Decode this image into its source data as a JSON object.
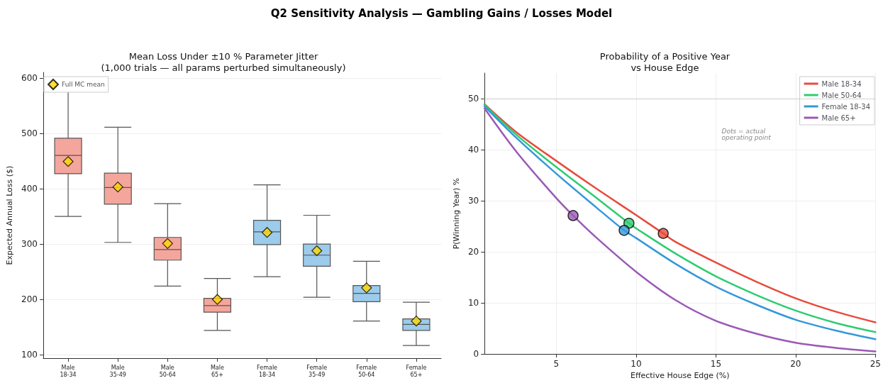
{
  "chart_data": [
    {
      "type": "box",
      "title": "Mean Loss Under ±10 % Parameter Jitter",
      "subtitle": "(1,000 trials — all params perturbed simultaneously)",
      "ylabel": "Expected Annual Loss ($)",
      "annotations": [
        "Q2 Sensitivity Analysis — Gambling Gains / Losses Model"
      ],
      "categories": [
        "Male\n18-34",
        "Male\n35-49",
        "Male\n50-64",
        "Male\n65+",
        "Female\n18-34",
        "Female\n35-49",
        "Female\n50-64",
        "Female\n65+"
      ],
      "colors": [
        "#f4a69c",
        "#f4a69c",
        "#f4a69c",
        "#f4a69c",
        "#9ccbeb",
        "#9ccbeb",
        "#9ccbeb",
        "#9ccbeb"
      ],
      "boxes": [
        {
          "low": 350,
          "q1": 427,
          "median": 460,
          "q3": 491,
          "high": 586
        },
        {
          "low": 303,
          "q1": 372,
          "median": 402,
          "q3": 428,
          "high": 511
        },
        {
          "low": 224,
          "q1": 271,
          "median": 290,
          "q3": 312,
          "high": 373
        },
        {
          "low": 144,
          "q1": 177,
          "median": 189,
          "q3": 202,
          "high": 238
        },
        {
          "low": 241,
          "q1": 299,
          "median": 322,
          "q3": 343,
          "high": 407
        },
        {
          "low": 204,
          "q1": 260,
          "median": 280,
          "q3": 300,
          "high": 352
        },
        {
          "low": 161,
          "q1": 196,
          "median": 211,
          "q3": 225,
          "high": 269
        },
        {
          "low": 117,
          "q1": 144,
          "median": 155,
          "q3": 165,
          "high": 195
        }
      ],
      "series": [
        {
          "type": "scatter",
          "name": "Full MC mean",
          "color": "#ffd700",
          "marker": "diamond",
          "x": [
            "Male\n18-34",
            "Male\n35-49",
            "Male\n50-64",
            "Male\n65+",
            "Female\n18-34",
            "Female\n35-49",
            "Female\n50-64",
            "Female\n65+"
          ],
          "values": [
            449,
            403,
            301,
            200,
            321,
            288,
            221,
            161
          ]
        }
      ],
      "ylim": [
        94,
        610
      ],
      "yticks": [
        100,
        200,
        300,
        400,
        500,
        600
      ],
      "grid": "y",
      "legend": "top left"
    },
    {
      "type": "line",
      "title": "Probability of a Positive Year",
      "subtitle": "vs House Edge",
      "xlabel": "Effective House Edge (%)",
      "ylabel": "P(Winning Year) %",
      "annotations": [
        "Dots = actual\noperating point"
      ],
      "series": [
        {
          "name": "Male 18-34",
          "color": "#e74c3c",
          "x": [
            0.5,
            2.5,
            5,
            7.5,
            10,
            11.7,
            12.5,
            15,
            17.5,
            20,
            22.5,
            25
          ],
          "values": [
            48.9,
            43.4,
            37.8,
            32.4,
            27.2,
            23.6,
            21.9,
            17.9,
            14.2,
            10.9,
            8.3,
            6.2
          ]
        },
        {
          "name": "Male 50-64",
          "color": "#2ecc71",
          "x": [
            0.5,
            2.5,
            5,
            7.5,
            9.55,
            10,
            12.5,
            15,
            17.5,
            20,
            22.5,
            25
          ],
          "values": [
            48.8,
            42.9,
            36.6,
            30.6,
            25.6,
            24.6,
            19.6,
            15.2,
            11.6,
            8.5,
            6.1,
            4.3
          ]
        },
        {
          "name": "Female 18-34",
          "color": "#3498db",
          "x": [
            0.5,
            2.5,
            5,
            7.5,
            9.25,
            10,
            12.5,
            15,
            17.5,
            20,
            22.5,
            25
          ],
          "values": [
            48.5,
            42.3,
            35.3,
            28.7,
            24.2,
            22.7,
            17.6,
            13.2,
            9.7,
            6.7,
            4.6,
            2.9
          ]
        },
        {
          "name": "Male 65+",
          "color": "#9b59b6",
          "x": [
            0.5,
            2.5,
            5,
            6.05,
            7.5,
            10,
            12.5,
            15,
            17.5,
            20,
            22.5,
            25
          ],
          "values": [
            48.1,
            39.6,
            30.5,
            27.1,
            22.8,
            16.1,
            10.5,
            6.5,
            4,
            2.2,
            1.2,
            0.5
          ]
        },
        {
          "type": "scatter",
          "marker": "circle",
          "x": [
            11.7,
            9.55,
            9.25,
            6.05
          ],
          "values": [
            23.6,
            25.6,
            24.2,
            27.1
          ],
          "colors": [
            "#e74c3c",
            "#2ecc71",
            "#3498db",
            "#9b59b6"
          ]
        }
      ],
      "xlim": [
        0.5,
        25
      ],
      "xticks": [
        5,
        10,
        15,
        20,
        25
      ],
      "ylim": [
        0,
        55
      ],
      "yticks": [
        0,
        10,
        20,
        30,
        40,
        50
      ],
      "grid": true,
      "legend": "top right",
      "marker": "none",
      "line_style": "solid",
      "ref_lines": [
        {
          "axis": "y",
          "value": 50,
          "color": "#aaaaaa",
          "line_style": "dotted"
        }
      ]
    }
  ]
}
